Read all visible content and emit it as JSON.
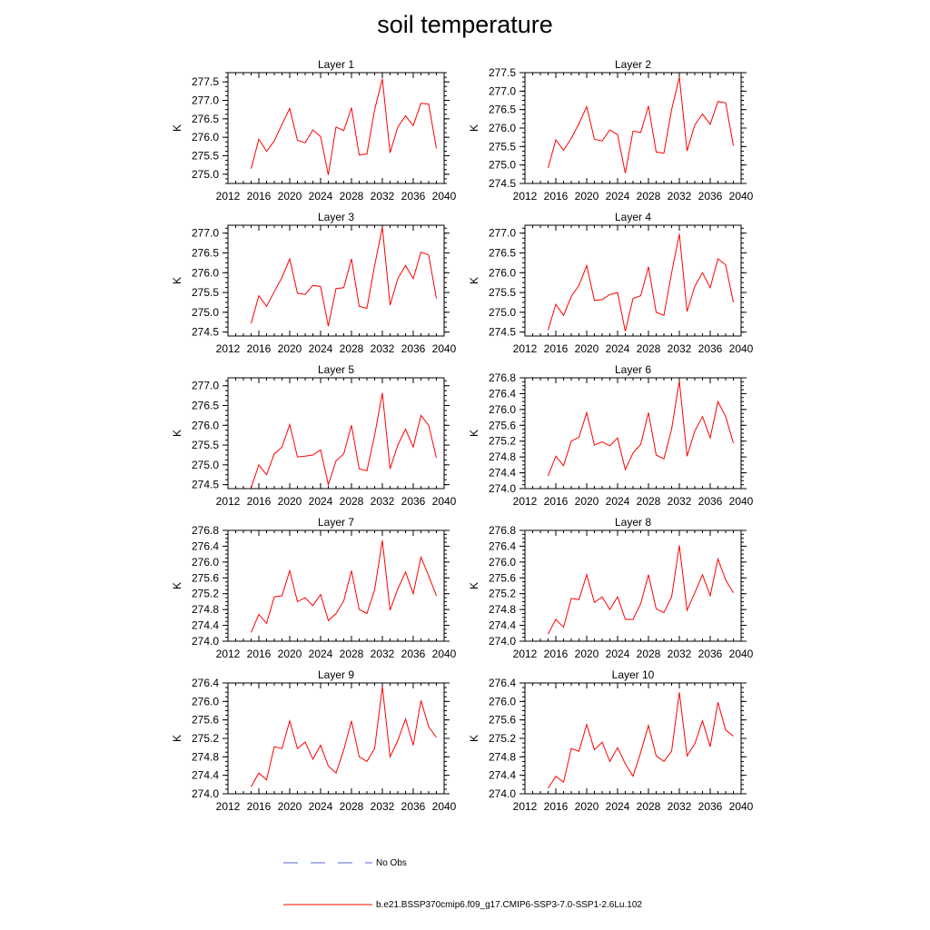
{
  "title": "soil temperature",
  "chart_data": {
    "type": "line",
    "x": [
      2015,
      2016,
      2017,
      2018,
      2019,
      2020,
      2021,
      2022,
      2023,
      2024,
      2025,
      2026,
      2027,
      2028,
      2029,
      2030,
      2031,
      2032,
      2033,
      2034,
      2035,
      2036,
      2037,
      2038,
      2039
    ],
    "xlim": [
      2012,
      2040
    ],
    "xticks": [
      "2012",
      "2016",
      "2020",
      "2024",
      "2028",
      "2032",
      "2036",
      "2040"
    ],
    "ylabel": "K",
    "series_color": "#ff0000",
    "panels": [
      {
        "title": "Layer 1",
        "ylim": [
          274.75,
          277.75
        ],
        "yticks": [
          "275.0",
          "275.5",
          "276.0",
          "276.5",
          "277.0",
          "277.5"
        ],
        "values": [
          275.15,
          275.95,
          275.62,
          275.9,
          276.35,
          276.78,
          275.92,
          275.85,
          276.2,
          276.02,
          274.98,
          276.28,
          276.18,
          276.8,
          275.52,
          275.55,
          276.75,
          277.58,
          275.58,
          276.28,
          276.58,
          276.32,
          276.92,
          276.9,
          275.7
        ]
      },
      {
        "title": "Layer 2",
        "ylim": [
          274.5,
          277.5
        ],
        "yticks": [
          "274.5",
          "275.0",
          "275.5",
          "276.0",
          "276.5",
          "277.0",
          "277.5"
        ],
        "values": [
          274.92,
          275.68,
          275.4,
          275.72,
          276.12,
          276.58,
          275.7,
          275.65,
          275.95,
          275.82,
          274.78,
          275.92,
          275.88,
          276.6,
          275.35,
          275.32,
          276.5,
          277.38,
          275.38,
          276.08,
          276.38,
          276.1,
          276.72,
          276.68,
          275.52
        ]
      },
      {
        "title": "Layer 3",
        "ylim": [
          274.4,
          277.2
        ],
        "yticks": [
          "274.5",
          "275.0",
          "275.5",
          "276.0",
          "276.5",
          "277.0"
        ],
        "values": [
          274.72,
          275.42,
          275.15,
          275.52,
          275.88,
          276.35,
          275.48,
          275.45,
          275.68,
          275.65,
          274.65,
          275.6,
          275.62,
          276.35,
          275.15,
          275.1,
          276.18,
          277.15,
          275.18,
          275.85,
          276.18,
          275.85,
          276.52,
          276.45,
          275.35
        ]
      },
      {
        "title": "Layer 4",
        "ylim": [
          274.4,
          277.2
        ],
        "yticks": [
          "274.5",
          "275.0",
          "275.5",
          "276.0",
          "276.5",
          "277.0"
        ],
        "values": [
          274.55,
          275.2,
          274.92,
          275.4,
          275.68,
          276.18,
          275.3,
          275.32,
          275.45,
          275.5,
          274.52,
          275.35,
          275.42,
          276.15,
          275.0,
          274.92,
          276.0,
          276.98,
          275.02,
          275.65,
          276.0,
          275.62,
          276.35,
          276.2,
          275.25
        ]
      },
      {
        "title": "Layer 5",
        "ylim": [
          274.4,
          277.2
        ],
        "yticks": [
          "274.5",
          "275.0",
          "275.5",
          "276.0",
          "276.5",
          "277.0"
        ],
        "values": [
          274.42,
          275.0,
          274.75,
          275.28,
          275.45,
          276.02,
          275.2,
          275.22,
          275.25,
          275.38,
          274.5,
          275.1,
          275.28,
          276.0,
          274.9,
          274.85,
          275.75,
          276.82,
          274.9,
          275.5,
          275.9,
          275.45,
          276.25,
          276.0,
          275.18
        ]
      },
      {
        "title": "Layer 6",
        "ylim": [
          274.0,
          276.8
        ],
        "yticks": [
          "274.0",
          "274.4",
          "274.8",
          "275.2",
          "275.6",
          "276.0",
          "276.4",
          "276.8"
        ],
        "values": [
          274.32,
          274.82,
          274.58,
          275.2,
          275.3,
          275.92,
          275.1,
          275.18,
          275.08,
          275.28,
          274.48,
          274.9,
          275.12,
          275.92,
          274.85,
          274.75,
          275.5,
          276.72,
          274.82,
          275.45,
          275.82,
          275.28,
          276.2,
          275.82,
          275.15
        ]
      },
      {
        "title": "Layer 7",
        "ylim": [
          274.0,
          276.8
        ],
        "yticks": [
          "274.0",
          "274.4",
          "274.8",
          "275.2",
          "275.6",
          "276.0",
          "276.4",
          "276.8"
        ],
        "values": [
          274.22,
          274.68,
          274.45,
          275.12,
          275.15,
          275.78,
          275.0,
          275.1,
          274.9,
          275.18,
          274.52,
          274.7,
          275.02,
          275.78,
          274.8,
          274.7,
          275.3,
          276.55,
          274.78,
          275.32,
          275.75,
          275.2,
          276.12,
          275.65,
          275.15
        ]
      },
      {
        "title": "Layer 8",
        "ylim": [
          274.0,
          276.8
        ],
        "yticks": [
          "274.0",
          "274.4",
          "274.8",
          "275.2",
          "275.6",
          "276.0",
          "276.4",
          "276.8"
        ],
        "values": [
          274.18,
          274.55,
          274.35,
          275.08,
          275.05,
          275.68,
          274.98,
          275.12,
          274.8,
          275.12,
          274.55,
          274.55,
          274.95,
          275.68,
          274.82,
          274.72,
          275.12,
          276.42,
          274.78,
          275.22,
          275.68,
          275.15,
          276.08,
          275.55,
          275.22
        ]
      },
      {
        "title": "Layer 9",
        "ylim": [
          274.0,
          276.4
        ],
        "yticks": [
          "274.0",
          "274.4",
          "274.8",
          "275.2",
          "275.6",
          "276.0",
          "276.4"
        ],
        "values": [
          274.15,
          274.45,
          274.3,
          275.02,
          274.98,
          275.58,
          274.98,
          275.12,
          274.75,
          275.05,
          274.6,
          274.45,
          274.95,
          275.58,
          274.8,
          274.7,
          274.98,
          276.32,
          274.8,
          275.15,
          275.62,
          275.05,
          276.02,
          275.45,
          275.22
        ]
      },
      {
        "title": "Layer 10",
        "ylim": [
          274.0,
          276.4
        ],
        "yticks": [
          "274.0",
          "274.4",
          "274.8",
          "275.2",
          "275.6",
          "276.0",
          "276.4"
        ],
        "values": [
          274.12,
          274.38,
          274.25,
          274.98,
          274.92,
          275.5,
          274.95,
          275.12,
          274.7,
          275.0,
          274.65,
          274.38,
          274.9,
          275.48,
          274.82,
          274.7,
          274.92,
          276.2,
          274.82,
          275.08,
          275.58,
          275.02,
          275.98,
          275.38,
          275.25
        ]
      }
    ],
    "legend": {
      "placement": "bottom",
      "entries": [
        {
          "label": "No Obs",
          "color": "#5566cc",
          "style": "dashed"
        },
        {
          "label": "b.e21.BSSP370cmip6.f09_g17.CMIP6-SSP3-7.0-SSP1-2.6Lu.102",
          "color": "#ff0000",
          "style": "solid"
        }
      ]
    }
  }
}
